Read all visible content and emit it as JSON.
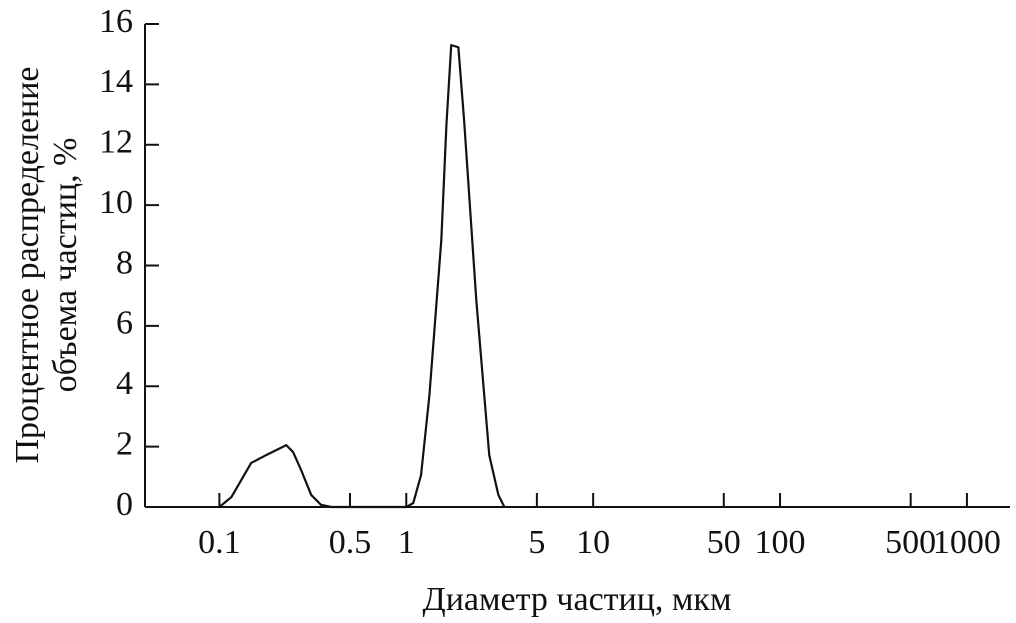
{
  "chart_data": {
    "type": "line",
    "x_label": "Диаметр частиц, мкм",
    "y_label": [
      "Процентное распределение",
      "объема частиц, %"
    ],
    "x_scale": "log",
    "xlim": [
      0.04,
      1700
    ],
    "xticks": [
      0.1,
      0.5,
      1,
      5,
      10,
      50,
      100,
      500,
      1000
    ],
    "ylim": [
      0,
      16
    ],
    "yticks": [
      0,
      2,
      4,
      6,
      8,
      10,
      12,
      14,
      16
    ],
    "series": [
      {
        "color": "#111111",
        "x": [
          0.1,
          0.116,
          0.148,
          0.178,
          0.228,
          0.248,
          0.274,
          0.31,
          0.35,
          0.397,
          1,
          1.09,
          1.2,
          1.33,
          1.54,
          1.64,
          1.74,
          1.9,
          2.04,
          2.37,
          2.78,
          3.11,
          3.35
        ],
        "values": [
          0,
          0.33,
          1.46,
          1.72,
          2.05,
          1.82,
          1.22,
          0.4,
          0.07,
          0,
          0,
          0.13,
          1.06,
          3.7,
          8.84,
          12.65,
          15.3,
          15.23,
          12.8,
          6.85,
          1.72,
          0.4,
          0
        ]
      }
    ]
  }
}
